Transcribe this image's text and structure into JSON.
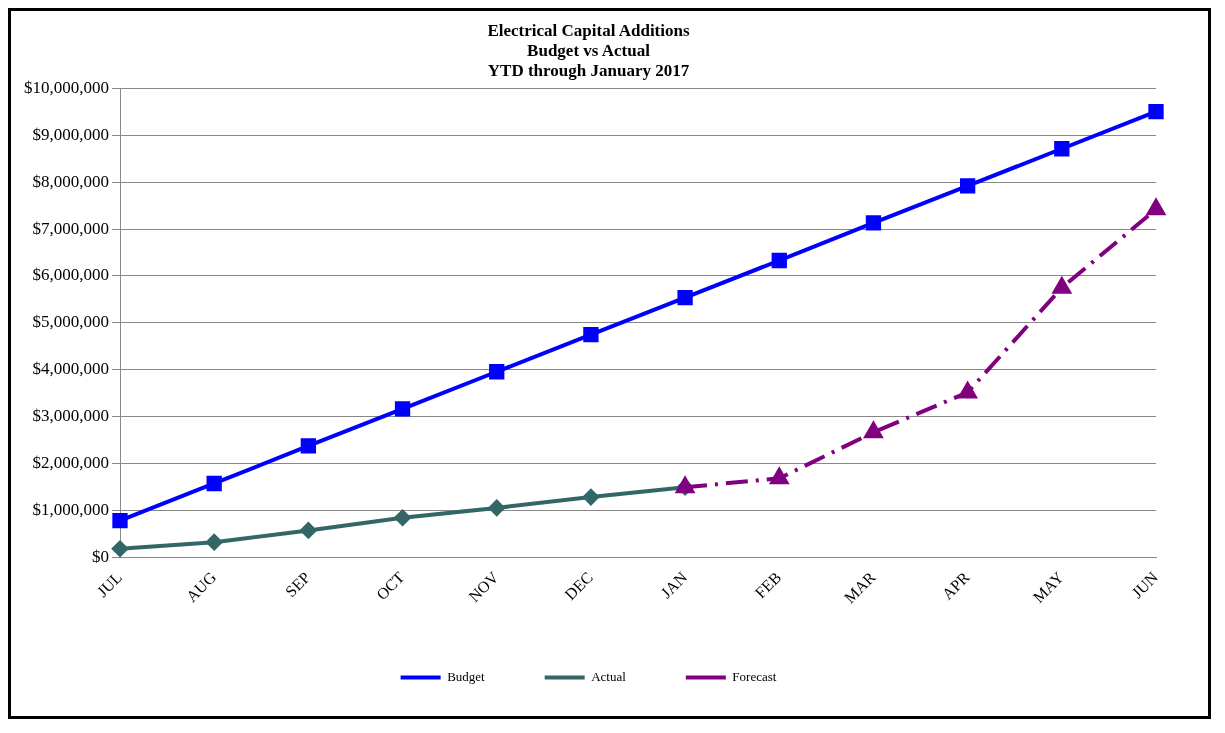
{
  "chart_data": {
    "type": "line",
    "title": "Electrical Capital Additions\nBudget vs Actual\nYTD through January 2017",
    "categories": [
      "JUL",
      "AUG",
      "SEP",
      "OCT",
      "NOV",
      "DEC",
      "JAN",
      "FEB",
      "MAR",
      "APR",
      "MAY",
      "JUN"
    ],
    "series": [
      {
        "name": "Budget",
        "color": "#0000ff",
        "marker": "square",
        "line_style": "solid",
        "values": [
          790000,
          1580000,
          2380000,
          3170000,
          3960000,
          4750000,
          5540000,
          6330000,
          7130000,
          7920000,
          8710000,
          9500000
        ]
      },
      {
        "name": "Actual",
        "color": "#336666",
        "marker": "diamond",
        "line_style": "solid",
        "values": [
          190000,
          330000,
          580000,
          850000,
          1060000,
          1290000,
          1500000,
          null,
          null,
          null,
          null,
          null
        ]
      },
      {
        "name": "Forecast",
        "color": "#800080",
        "marker": "triangle",
        "line_style": "dashed",
        "values": [
          null,
          null,
          null,
          null,
          null,
          null,
          1500000,
          1690000,
          2670000,
          3520000,
          5750000,
          7420000
        ]
      }
    ],
    "ylim": [
      0,
      10000000
    ],
    "yticks": [
      {
        "value": 0,
        "label": "$0"
      },
      {
        "value": 1000000,
        "label": "$1,000,000"
      },
      {
        "value": 2000000,
        "label": "$2,000,000"
      },
      {
        "value": 3000000,
        "label": "$3,000,000"
      },
      {
        "value": 4000000,
        "label": "$4,000,000"
      },
      {
        "value": 5000000,
        "label": "$5,000,000"
      },
      {
        "value": 6000000,
        "label": "$6,000,000"
      },
      {
        "value": 7000000,
        "label": "$7,000,000"
      },
      {
        "value": 8000000,
        "label": "$8,000,000"
      },
      {
        "value": 9000000,
        "label": "$9,000,000"
      },
      {
        "value": 10000000,
        "label": "$10,000,000"
      }
    ],
    "grid": "y",
    "legend": "bottom"
  }
}
